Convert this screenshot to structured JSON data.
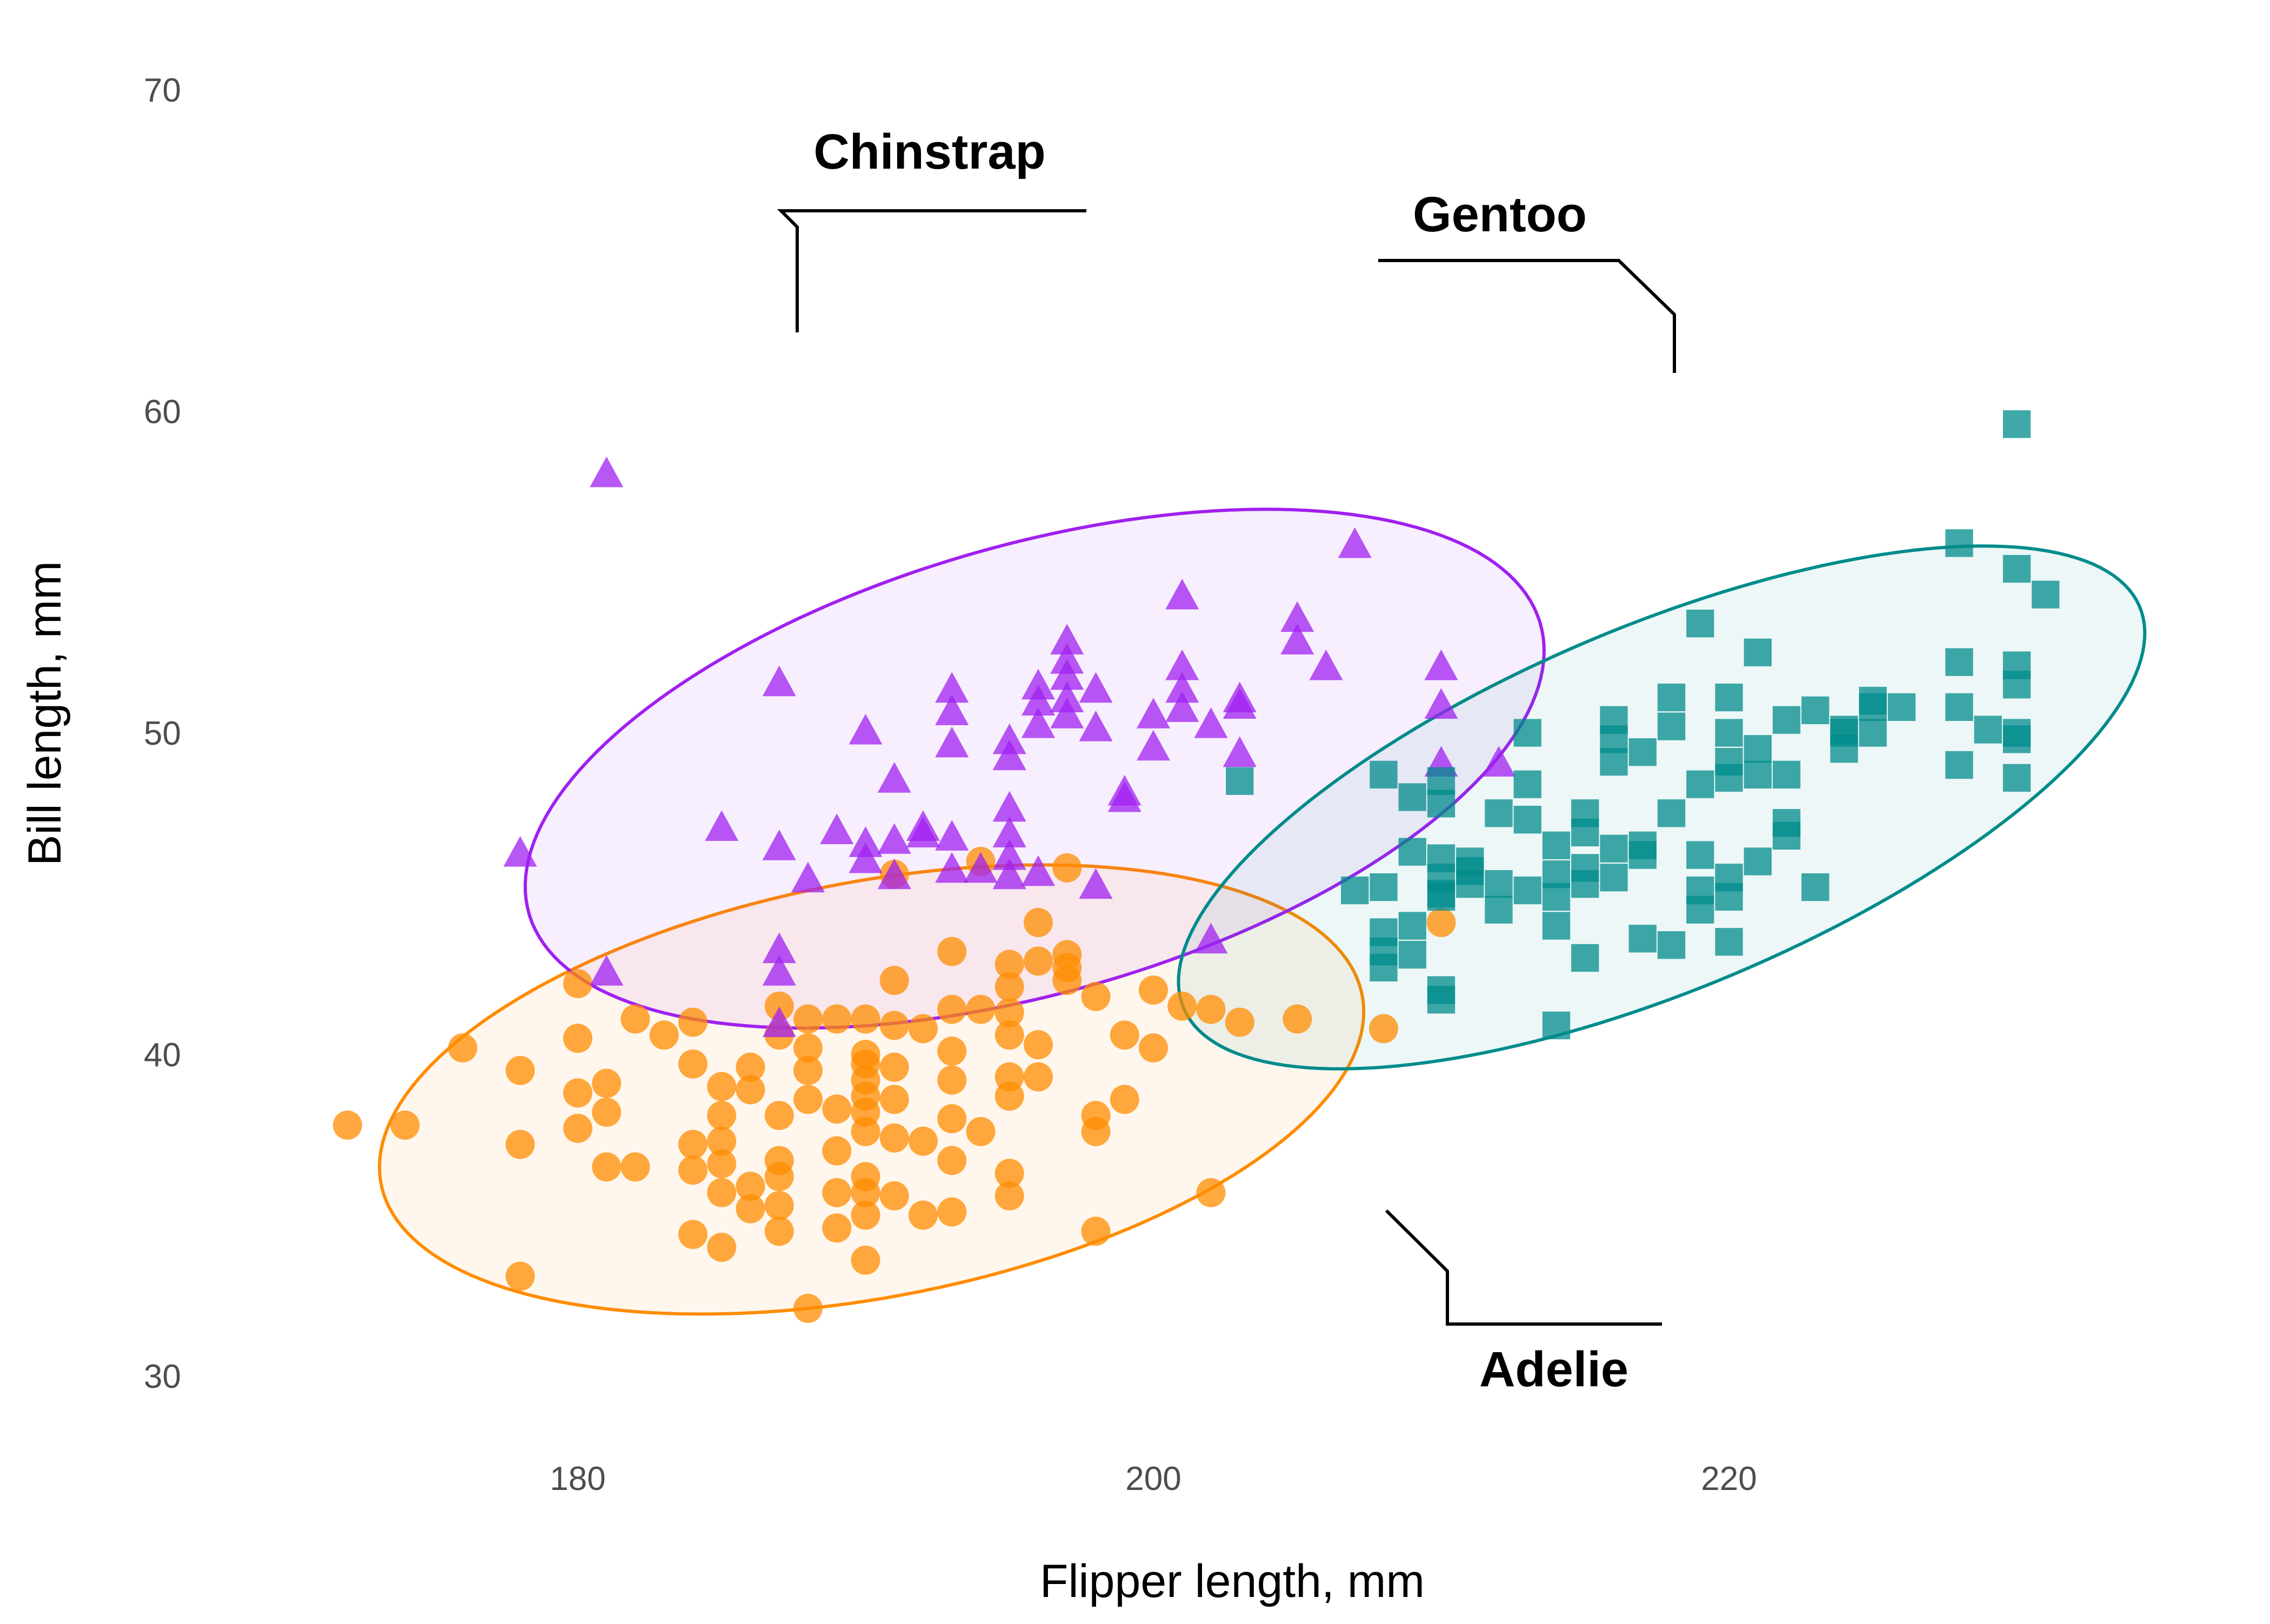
{
  "chart_data": {
    "type": "scatter",
    "title": "",
    "xlabel": "Flipper length, mm",
    "ylabel": "Bill length, mm",
    "xlim": [
      168,
      234
    ],
    "ylim": [
      30,
      70
    ],
    "x_ticks": [
      180,
      200,
      220
    ],
    "y_ticks": [
      30,
      40,
      50,
      60,
      70
    ],
    "grid": false,
    "legend": "none (direct labels)",
    "confidence_ellipses": true,
    "series": [
      {
        "name": "Adelie",
        "marker": "circle",
        "color": "#ff8c00",
        "points": [
          [
            172,
            37.8
          ],
          [
            174,
            37.8
          ],
          [
            176,
            40.2
          ],
          [
            178,
            39.5
          ],
          [
            178,
            37.2
          ],
          [
            178,
            33.1
          ],
          [
            180,
            42.2
          ],
          [
            180,
            40.5
          ],
          [
            180,
            38.8
          ],
          [
            180,
            37.7
          ],
          [
            181,
            39.1
          ],
          [
            181,
            38.2
          ],
          [
            181,
            36.5
          ],
          [
            182,
            36.5
          ],
          [
            182,
            41.1
          ],
          [
            183,
            40.6
          ],
          [
            184,
            41.0
          ],
          [
            184,
            39.7
          ],
          [
            184,
            37.2
          ],
          [
            184,
            36.4
          ],
          [
            184,
            34.4
          ],
          [
            185,
            39.0
          ],
          [
            185,
            38.1
          ],
          [
            185,
            37.3
          ],
          [
            185,
            36.6
          ],
          [
            185,
            35.7
          ],
          [
            185,
            34.0
          ],
          [
            186,
            39.6
          ],
          [
            186,
            38.9
          ],
          [
            186,
            35.9
          ],
          [
            186,
            35.2
          ],
          [
            187,
            41.5
          ],
          [
            187,
            40.6
          ],
          [
            187,
            38.1
          ],
          [
            187,
            36.7
          ],
          [
            187,
            36.2
          ],
          [
            187,
            35.3
          ],
          [
            187,
            34.5
          ],
          [
            188,
            41.1
          ],
          [
            188,
            40.2
          ],
          [
            188,
            39.5
          ],
          [
            188,
            38.6
          ],
          [
            188,
            32.1
          ],
          [
            189,
            41.1
          ],
          [
            189,
            38.3
          ],
          [
            189,
            37.0
          ],
          [
            189,
            35.7
          ],
          [
            189,
            34.6
          ],
          [
            190,
            41.1
          ],
          [
            190,
            40.0
          ],
          [
            190,
            39.7
          ],
          [
            190,
            39.2
          ],
          [
            190,
            38.7
          ],
          [
            190,
            38.2
          ],
          [
            190,
            37.6
          ],
          [
            190,
            36.2
          ],
          [
            190,
            35.7
          ],
          [
            190,
            35.0
          ],
          [
            190,
            33.6
          ],
          [
            191,
            45.6
          ],
          [
            191,
            42.3
          ],
          [
            191,
            40.9
          ],
          [
            191,
            39.6
          ],
          [
            191,
            38.6
          ],
          [
            191,
            37.4
          ],
          [
            191,
            35.6
          ],
          [
            192,
            40.8
          ],
          [
            192,
            37.3
          ],
          [
            192,
            35.0
          ],
          [
            193,
            43.2
          ],
          [
            193,
            41.4
          ],
          [
            193,
            40.1
          ],
          [
            193,
            39.2
          ],
          [
            193,
            38.0
          ],
          [
            193,
            36.7
          ],
          [
            193,
            35.1
          ],
          [
            194,
            46.0
          ],
          [
            194,
            41.4
          ],
          [
            194,
            37.6
          ],
          [
            195,
            42.8
          ],
          [
            195,
            42.1
          ],
          [
            195,
            41.3
          ],
          [
            195,
            40.6
          ],
          [
            195,
            39.3
          ],
          [
            195,
            38.7
          ],
          [
            195,
            36.3
          ],
          [
            195,
            35.6
          ],
          [
            196,
            44.1
          ],
          [
            196,
            42.9
          ],
          [
            196,
            40.3
          ],
          [
            196,
            39.3
          ],
          [
            197,
            43.1
          ],
          [
            197,
            42.7
          ],
          [
            197,
            42.3
          ],
          [
            197,
            45.8
          ],
          [
            198,
            41.8
          ],
          [
            198,
            38.1
          ],
          [
            198,
            37.6
          ],
          [
            198,
            34.5
          ],
          [
            199,
            40.6
          ],
          [
            199,
            38.6
          ],
          [
            200,
            42.0
          ],
          [
            200,
            40.2
          ],
          [
            201,
            41.5
          ],
          [
            202,
            41.4
          ],
          [
            202,
            35.7
          ],
          [
            203,
            41.0
          ],
          [
            205,
            41.1
          ],
          [
            208,
            40.8
          ],
          [
            210,
            44.1
          ]
        ]
      },
      {
        "name": "Chinstrap",
        "marker": "triangle",
        "color": "#a020f0",
        "points": [
          [
            178,
            46.2
          ],
          [
            181,
            42.5
          ],
          [
            181,
            58.0
          ],
          [
            185,
            47.0
          ],
          [
            187,
            46.4
          ],
          [
            187,
            43.2
          ],
          [
            187,
            42.5
          ],
          [
            187,
            40.9
          ],
          [
            187,
            51.5
          ],
          [
            188,
            45.4
          ],
          [
            189,
            46.9
          ],
          [
            190,
            46.5
          ],
          [
            190,
            46.0
          ],
          [
            190,
            50.0
          ],
          [
            191,
            46.6
          ],
          [
            191,
            45.5
          ],
          [
            191,
            48.5
          ],
          [
            192,
            46.8
          ],
          [
            192,
            47.0
          ],
          [
            193,
            46.7
          ],
          [
            193,
            45.7
          ],
          [
            193,
            51.3
          ],
          [
            193,
            50.6
          ],
          [
            193,
            49.6
          ],
          [
            194,
            45.7
          ],
          [
            195,
            45.5
          ],
          [
            195,
            46.1
          ],
          [
            195,
            46.8
          ],
          [
            195,
            47.6
          ],
          [
            195,
            49.2
          ],
          [
            195,
            49.7
          ],
          [
            196,
            45.6
          ],
          [
            196,
            50.9
          ],
          [
            196,
            51.4
          ],
          [
            196,
            50.2
          ],
          [
            197,
            52.8
          ],
          [
            197,
            52.2
          ],
          [
            197,
            51.7
          ],
          [
            197,
            51.0
          ],
          [
            197,
            50.5
          ],
          [
            198,
            51.3
          ],
          [
            198,
            50.1
          ],
          [
            198,
            45.2
          ],
          [
            199,
            47.9
          ],
          [
            199,
            48.1
          ],
          [
            200,
            49.5
          ],
          [
            200,
            50.5
          ],
          [
            201,
            50.7
          ],
          [
            201,
            51.3
          ],
          [
            201,
            52.0
          ],
          [
            201,
            54.2
          ],
          [
            202,
            50.2
          ],
          [
            202,
            43.5
          ],
          [
            203,
            49.3
          ],
          [
            203,
            50.8
          ],
          [
            203,
            51.0
          ],
          [
            205,
            53.5
          ],
          [
            205,
            52.8
          ],
          [
            206,
            52.0
          ],
          [
            207,
            55.8
          ],
          [
            210,
            49.0
          ],
          [
            210,
            50.8
          ],
          [
            210,
            52.0
          ],
          [
            212,
            49.0
          ]
        ]
      },
      {
        "name": "Gentoo",
        "marker": "square",
        "color": "#008b8b",
        "points": [
          [
            203,
            48.5
          ],
          [
            207,
            45.1
          ],
          [
            208,
            48.7
          ],
          [
            208,
            45.2
          ],
          [
            208,
            43.8
          ],
          [
            208,
            43.2
          ],
          [
            208,
            42.7
          ],
          [
            209,
            48.0
          ],
          [
            209,
            46.3
          ],
          [
            209,
            44.0
          ],
          [
            209,
            43.1
          ],
          [
            210,
            48.5
          ],
          [
            210,
            47.8
          ],
          [
            210,
            46.1
          ],
          [
            210,
            45.5
          ],
          [
            210,
            45.0
          ],
          [
            210,
            44.9
          ],
          [
            210,
            42.0
          ],
          [
            210,
            41.7
          ],
          [
            211,
            46.0
          ],
          [
            211,
            45.7
          ],
          [
            211,
            45.3
          ],
          [
            212,
            47.5
          ],
          [
            212,
            45.3
          ],
          [
            212,
            44.5
          ],
          [
            213,
            48.4
          ],
          [
            213,
            47.3
          ],
          [
            213,
            45.1
          ],
          [
            213,
            50.0
          ],
          [
            214,
            46.5
          ],
          [
            214,
            45.6
          ],
          [
            214,
            44.9
          ],
          [
            214,
            44.0
          ],
          [
            214,
            40.9
          ],
          [
            215,
            47.5
          ],
          [
            215,
            46.9
          ],
          [
            215,
            45.8
          ],
          [
            215,
            45.3
          ],
          [
            215,
            43.0
          ],
          [
            216,
            50.4
          ],
          [
            216,
            49.8
          ],
          [
            216,
            49.1
          ],
          [
            216,
            46.4
          ],
          [
            216,
            45.5
          ],
          [
            217,
            49.4
          ],
          [
            217,
            46.2
          ],
          [
            217,
            46.5
          ],
          [
            217,
            43.6
          ],
          [
            218,
            51.1
          ],
          [
            218,
            50.2
          ],
          [
            218,
            47.5
          ],
          [
            218,
            43.4
          ],
          [
            219,
            48.4
          ],
          [
            219,
            46.2
          ],
          [
            219,
            45.1
          ],
          [
            219,
            44.5
          ],
          [
            219,
            53.4
          ],
          [
            220,
            51.1
          ],
          [
            220,
            50.0
          ],
          [
            220,
            49.1
          ],
          [
            220,
            48.6
          ],
          [
            220,
            45.5
          ],
          [
            220,
            43.5
          ],
          [
            220,
            44.9
          ],
          [
            221,
            49.5
          ],
          [
            221,
            48.7
          ],
          [
            221,
            46.0
          ],
          [
            221,
            52.5
          ],
          [
            222,
            50.4
          ],
          [
            222,
            48.7
          ],
          [
            222,
            47.2
          ],
          [
            222,
            46.8
          ],
          [
            223,
            50.7
          ],
          [
            223,
            45.2
          ],
          [
            224,
            50.0
          ],
          [
            224,
            49.5
          ],
          [
            224,
            50.1
          ],
          [
            225,
            50.0
          ],
          [
            225,
            50.8
          ],
          [
            225,
            51.0
          ],
          [
            226,
            50.8
          ],
          [
            228,
            49.0
          ],
          [
            228,
            52.2
          ],
          [
            228,
            50.8
          ],
          [
            228,
            55.9
          ],
          [
            229,
            50.1
          ],
          [
            230,
            59.6
          ],
          [
            230,
            55.1
          ],
          [
            230,
            52.1
          ],
          [
            230,
            51.5
          ],
          [
            230,
            49.8
          ],
          [
            230,
            50.0
          ],
          [
            230,
            48.6
          ],
          [
            231,
            54.3
          ]
        ]
      }
    ]
  }
}
